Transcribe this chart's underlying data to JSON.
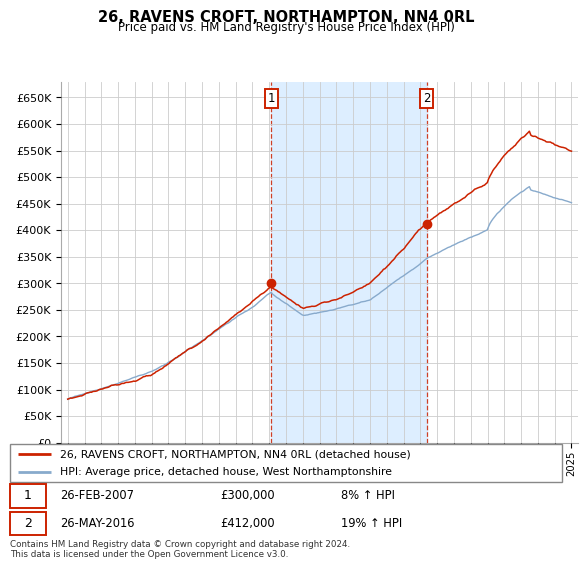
{
  "title": "26, RAVENS CROFT, NORTHAMPTON, NN4 0RL",
  "subtitle": "Price paid vs. HM Land Registry's House Price Index (HPI)",
  "yticks": [
    0,
    50000,
    100000,
    150000,
    200000,
    250000,
    300000,
    350000,
    400000,
    450000,
    500000,
    550000,
    600000,
    650000
  ],
  "ylim": [
    0,
    680000
  ],
  "purchase1": {
    "date_num": 2007.12,
    "price": 300000,
    "label": "1"
  },
  "purchase2": {
    "date_num": 2016.38,
    "price": 412000,
    "label": "2"
  },
  "legend_line1": "26, RAVENS CROFT, NORTHAMPTON, NN4 0RL (detached house)",
  "legend_line2": "HPI: Average price, detached house, West Northamptonshire",
  "ann1_date": "26-FEB-2007",
  "ann1_price": "£300,000",
  "ann1_hpi": "8% ↑ HPI",
  "ann2_date": "26-MAY-2016",
  "ann2_price": "£412,000",
  "ann2_hpi": "19% ↑ HPI",
  "footer": "Contains HM Land Registry data © Crown copyright and database right 2024.\nThis data is licensed under the Open Government Licence v3.0.",
  "line_color_red": "#cc2200",
  "line_color_blue": "#88aacc",
  "shade_color": "#ddeeff",
  "grid_color": "#cccccc",
  "background_color": "#ffffff"
}
